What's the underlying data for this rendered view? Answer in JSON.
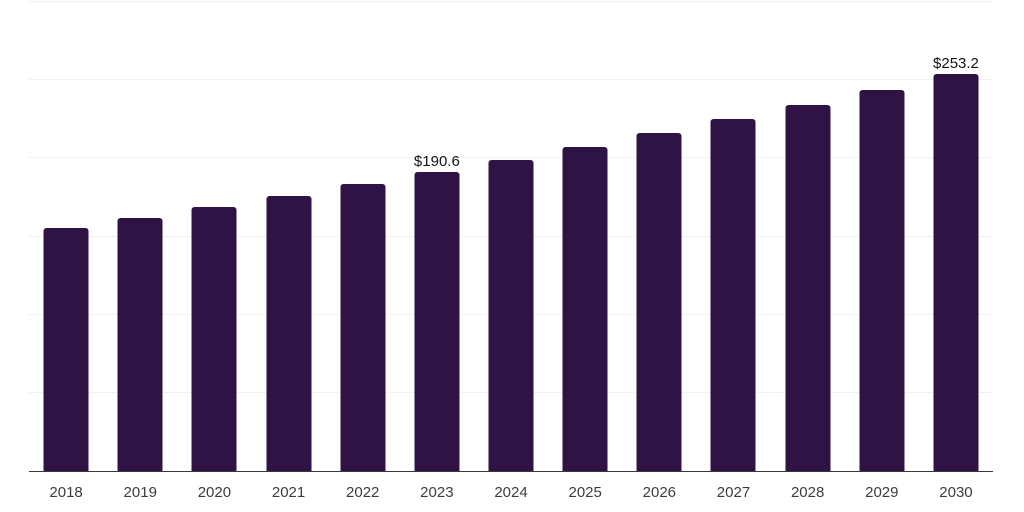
{
  "chart": {
    "background": "#ffffff",
    "bar_color": "#301345",
    "grid_color": "#f2f0f3",
    "axis_color": "#3a3a3a",
    "tick_label_color": "#3d3d3d",
    "value_label_color": "#141414"
  },
  "chart_data": {
    "type": "bar",
    "title": "",
    "xlabel": "",
    "ylabel": "",
    "categories": [
      "2018",
      "2019",
      "2020",
      "2021",
      "2022",
      "2023",
      "2024",
      "2025",
      "2026",
      "2027",
      "2028",
      "2029",
      "2030"
    ],
    "values": [
      155.0,
      161.7,
      168.4,
      175.5,
      183.0,
      190.6,
      198.7,
      207.1,
      215.7,
      224.4,
      233.8,
      243.4,
      253.2
    ],
    "data_labels": [
      "",
      "",
      "",
      "",
      "",
      "$190.6",
      "",
      "",
      "",
      "",
      "",
      "",
      "$253.2"
    ],
    "ylim": [
      0,
      300
    ],
    "grid_step": 50,
    "grid": "horizontal",
    "legend": "none",
    "currency_prefix": "$"
  }
}
